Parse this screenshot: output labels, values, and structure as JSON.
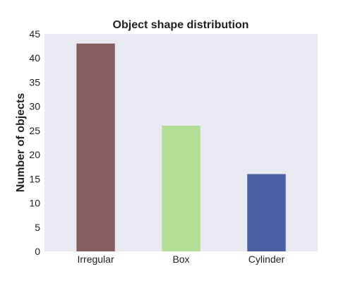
{
  "chart_data": {
    "type": "bar",
    "title": "Object shape distribution",
    "xlabel": "",
    "ylabel": "Number of objects",
    "categories": [
      "Irregular",
      "Box",
      "Cylinder"
    ],
    "values": [
      43,
      26,
      16
    ],
    "bar_colors": [
      "#855f5f",
      "#b3de96",
      "#4a61a6"
    ],
    "ylim": [
      0,
      45
    ],
    "yticks": [
      0,
      5,
      10,
      15,
      20,
      25,
      30,
      35,
      40,
      45
    ],
    "ytick_labels": [
      "0",
      "5",
      "10",
      "15",
      "20",
      "25",
      "30",
      "35",
      "40",
      "45"
    ],
    "grid": false,
    "legend": "none",
    "plot_background": "#e9e9f2"
  }
}
